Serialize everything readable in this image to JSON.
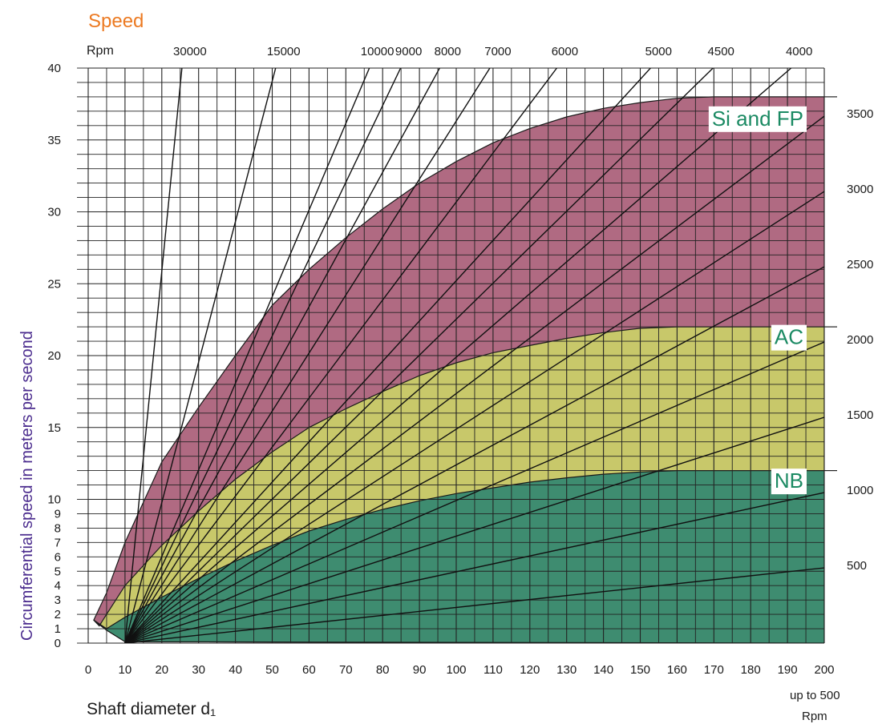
{
  "chart_data": {
    "type": "line",
    "title": "Speed",
    "xlabel": "Shaft diameter d₁",
    "ylabel": "Circumferential speed in meters per second",
    "x_note": "up to 500",
    "x_note_unit": "Rpm",
    "top_axis_label": "Rpm",
    "xlim": [
      0,
      200
    ],
    "ylim": [
      0,
      40
    ],
    "grid": true,
    "x_ticks": [
      "0",
      "10",
      "20",
      "30",
      "40",
      "50",
      "60",
      "70",
      "80",
      "90",
      "100",
      "110",
      "120",
      "130",
      "140",
      "150",
      "160",
      "170",
      "180",
      "190",
      "200"
    ],
    "y_ticks": [
      "0",
      "1",
      "2",
      "3",
      "4",
      "5",
      "6",
      "7",
      "8",
      "9",
      "10",
      "15",
      "20",
      "25",
      "30",
      "35",
      "40"
    ],
    "rpm_top_labels": [
      {
        "text": "30000",
        "rpm": 30000
      },
      {
        "text": "15000",
        "rpm": 15000
      },
      {
        "text": "10000",
        "rpm": 10000
      },
      {
        "text": "9000",
        "rpm": 9000
      },
      {
        "text": "8000",
        "rpm": 8000
      },
      {
        "text": "7000",
        "rpm": 7000
      },
      {
        "text": "6000",
        "rpm": 6000
      },
      {
        "text": "5000",
        "rpm": 5000
      },
      {
        "text": "4500",
        "rpm": 4500
      },
      {
        "text": "4000",
        "rpm": 4000
      }
    ],
    "rpm_right_labels": [
      {
        "text": "3500",
        "rpm": 3500
      },
      {
        "text": "3000",
        "rpm": 3000
      },
      {
        "text": "2500",
        "rpm": 2500
      },
      {
        "text": "2000",
        "rpm": 2000
      },
      {
        "text": "1500",
        "rpm": 1500
      },
      {
        "text": "1000",
        "rpm": 1000
      },
      {
        "text": "500",
        "rpm": 500
      }
    ],
    "rpm_lines": [
      30000,
      15000,
      10000,
      9000,
      8000,
      7000,
      6000,
      5000,
      4500,
      4000,
      3500,
      3000,
      2500,
      2000,
      1500,
      1000,
      500
    ],
    "zones": [
      {
        "name": "Si and FP",
        "color": "#b06a82",
        "label_y": 36,
        "upper": [
          [
            1.5,
            1.6
          ],
          [
            5,
            3.5
          ],
          [
            10,
            7.0
          ],
          [
            20,
            12.6
          ],
          [
            30,
            16.4
          ],
          [
            40,
            20.0
          ],
          [
            50,
            23.5
          ],
          [
            60,
            26.0
          ],
          [
            70,
            28.2
          ],
          [
            80,
            30.2
          ],
          [
            90,
            32.0
          ],
          [
            100,
            33.5
          ],
          [
            110,
            34.8
          ],
          [
            120,
            35.8
          ],
          [
            130,
            36.6
          ],
          [
            140,
            37.2
          ],
          [
            150,
            37.6
          ],
          [
            160,
            37.9
          ],
          [
            170,
            38.0
          ],
          [
            200,
            38.0
          ]
        ]
      },
      {
        "name": "AC",
        "color": "#c8c86a",
        "label_y": 20.8,
        "upper": [
          [
            3,
            1.2
          ],
          [
            5,
            2.0
          ],
          [
            10,
            4.0
          ],
          [
            20,
            6.8
          ],
          [
            30,
            9.2
          ],
          [
            40,
            11.4
          ],
          [
            50,
            13.3
          ],
          [
            60,
            15.0
          ],
          [
            70,
            16.3
          ],
          [
            80,
            17.5
          ],
          [
            90,
            18.6
          ],
          [
            100,
            19.5
          ],
          [
            110,
            20.2
          ],
          [
            120,
            20.7
          ],
          [
            130,
            21.2
          ],
          [
            140,
            21.6
          ],
          [
            150,
            21.9
          ],
          [
            160,
            22.0
          ],
          [
            200,
            22.0
          ]
        ]
      },
      {
        "name": "NB",
        "color": "#3e8c70",
        "label_y": 10.8,
        "upper": [
          [
            5,
            1.0
          ],
          [
            10,
            1.8
          ],
          [
            20,
            3.2
          ],
          [
            30,
            4.5
          ],
          [
            40,
            5.7
          ],
          [
            50,
            6.8
          ],
          [
            60,
            7.8
          ],
          [
            70,
            8.6
          ],
          [
            80,
            9.3
          ],
          [
            90,
            9.9
          ],
          [
            100,
            10.4
          ],
          [
            110,
            10.8
          ],
          [
            120,
            11.2
          ],
          [
            130,
            11.5
          ],
          [
            140,
            11.75
          ],
          [
            150,
            11.9
          ],
          [
            160,
            12.0
          ],
          [
            200,
            12.0
          ]
        ]
      }
    ],
    "zone_lower": [
      [
        1.5,
        1.6
      ],
      [
        5,
        0.9
      ],
      [
        10,
        0.1
      ],
      [
        200,
        0
      ]
    ],
    "zone_right_ticks": [
      38,
      22,
      12
    ]
  }
}
